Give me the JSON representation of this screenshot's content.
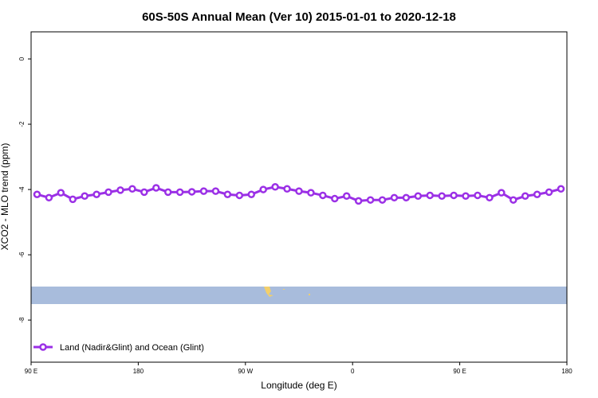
{
  "chart_data": {
    "type": "line",
    "title": "60S-50S Annual Mean (Ver 10)   2015-01-01 to 2020-12-18",
    "x_label": "Longitude (deg E)",
    "y_label": "XCO2 - MLO trend (ppm)",
    "xlim": [
      90,
      540
    ],
    "xticks": [
      {
        "value": 90,
        "label": "90 E"
      },
      180,
      {
        "value": 270,
        "label": "90 W"
      },
      {
        "value": 360,
        "label": "0"
      },
      {
        "value": 450,
        "label": "90 E"
      },
      {
        "value": 540,
        "label": "180"
      }
    ],
    "ylim": [
      -9.29,
      0.83
    ],
    "yticks": [
      0,
      -2,
      -4,
      -6,
      -8
    ],
    "legend": "bottom-left",
    "x": [
      95,
      105,
      115,
      125,
      135,
      145,
      155,
      165,
      175,
      185,
      195,
      205,
      215,
      225,
      235,
      245,
      255,
      265,
      275,
      285,
      295,
      305,
      315,
      325,
      335,
      345,
      355,
      365,
      375,
      385,
      395,
      405,
      415,
      425,
      435,
      445,
      455,
      465,
      475,
      485,
      495,
      505,
      515,
      525,
      535
    ],
    "series": [
      {
        "name": "Land (Nadir&Glint) and Ocean (Glint)",
        "color": "#9b30e6",
        "values": [
          -4.15,
          -4.25,
          -4.1,
          -4.3,
          -4.2,
          -4.15,
          -4.08,
          -4.02,
          -3.98,
          -4.08,
          -3.95,
          -4.08,
          -4.08,
          -4.07,
          -4.05,
          -4.05,
          -4.15,
          -4.18,
          -4.15,
          -4.0,
          -3.92,
          -3.98,
          -4.05,
          -4.1,
          -4.18,
          -4.28,
          -4.2,
          -4.35,
          -4.32,
          -4.32,
          -4.25,
          -4.25,
          -4.2,
          -4.18,
          -4.2,
          -4.18,
          -4.2,
          -4.18,
          -4.25,
          -4.1,
          -4.32,
          -4.2,
          -4.15,
          -4.08,
          -3.98
        ]
      }
    ]
  }
}
